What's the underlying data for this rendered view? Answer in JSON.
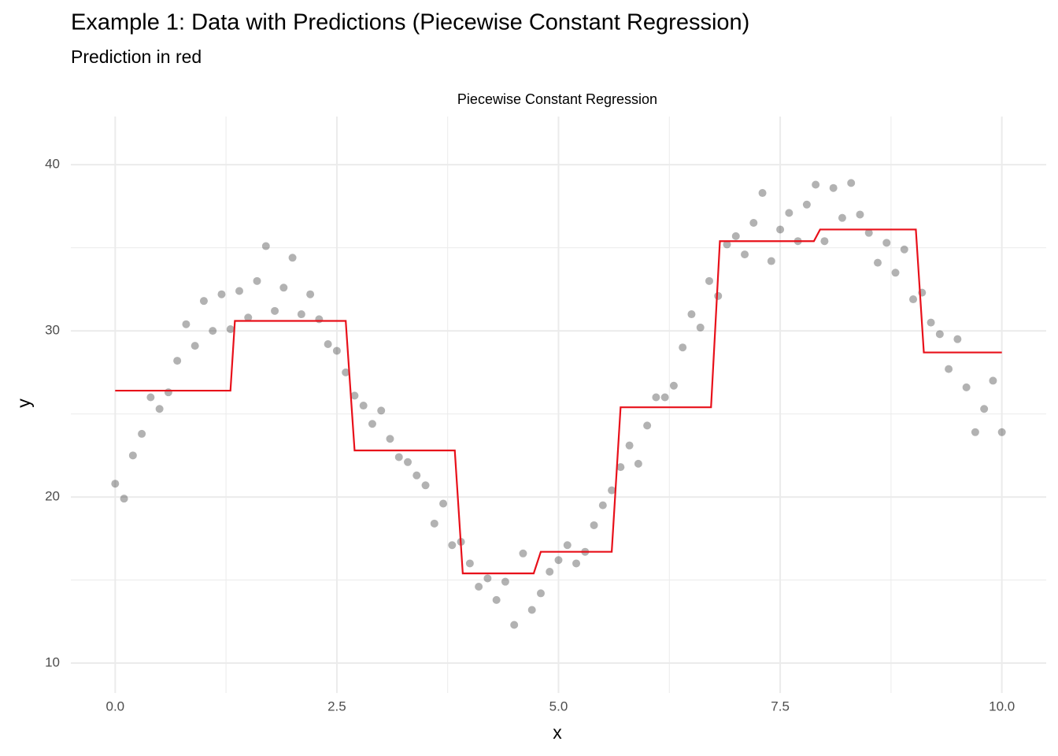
{
  "chart_data": {
    "type": "scatter",
    "title": "Example 1: Data with Predictions (Piecewise Constant Regression)",
    "subtitle": "Prediction in red",
    "panel_title": "Piecewise Constant Regression",
    "x_label": "x",
    "y_label": "y",
    "xlim": [
      -0.5,
      10.5
    ],
    "ylim": [
      8.2,
      42.9
    ],
    "xticks": [
      {
        "value": 0,
        "label": "0.0"
      },
      2.5,
      {
        "value": 5,
        "label": "5.0"
      },
      7.5,
      {
        "value": 10,
        "label": "10.0"
      }
    ],
    "yticks": [
      10,
      20,
      30,
      40
    ],
    "grid": true,
    "minor_grid": true,
    "points": {
      "color": "#000000",
      "opacity": 0.3,
      "x": [
        0,
        0.1,
        0.2,
        0.3,
        0.4,
        0.5,
        0.6,
        0.7,
        0.8,
        0.9,
        1,
        1.1,
        1.2,
        1.3,
        1.4,
        1.5,
        1.6,
        1.7,
        1.8,
        1.9,
        2,
        2.1,
        2.2,
        2.3,
        2.4,
        2.5,
        2.6,
        2.7,
        2.8,
        2.9,
        3,
        3.1,
        3.2,
        3.3,
        3.4,
        3.5,
        3.6,
        3.7,
        3.8,
        3.9,
        4,
        4.1,
        4.2,
        4.3,
        4.4,
        4.5,
        4.6,
        4.7,
        4.8,
        4.9,
        5,
        5.1,
        5.2,
        5.3,
        5.4,
        5.5,
        5.6,
        5.7,
        5.8,
        5.9,
        6,
        6.1,
        6.2,
        6.3,
        6.4,
        6.5,
        6.6,
        6.7,
        6.8,
        6.9,
        7,
        7.1,
        7.2,
        7.3,
        7.4,
        7.5,
        7.6,
        7.7,
        7.8,
        7.9,
        8,
        8.1,
        8.2,
        8.3,
        8.4,
        8.5,
        8.6,
        8.7,
        8.8,
        8.9,
        9,
        9.1,
        9.2,
        9.3,
        9.4,
        9.5,
        9.6,
        9.7,
        9.8,
        9.9,
        10
      ],
      "y": [
        20.8,
        19.9,
        22.5,
        23.8,
        26.0,
        25.3,
        26.3,
        28.2,
        30.4,
        29.1,
        31.8,
        30.0,
        32.2,
        30.1,
        32.4,
        30.8,
        33.0,
        35.1,
        31.2,
        32.6,
        34.4,
        31.0,
        32.2,
        30.7,
        29.2,
        28.8,
        27.5,
        26.1,
        25.5,
        24.4,
        25.2,
        23.5,
        22.4,
        22.1,
        21.3,
        20.7,
        18.4,
        19.6,
        17.1,
        17.3,
        16.0,
        14.6,
        15.1,
        13.8,
        14.9,
        12.3,
        16.6,
        13.2,
        14.2,
        15.5,
        16.2,
        17.1,
        16.0,
        16.7,
        18.3,
        19.5,
        20.4,
        21.8,
        23.1,
        22.0,
        24.3,
        26.0,
        26.0,
        26.7,
        29.0,
        31.0,
        30.2,
        33.0,
        32.1,
        35.2,
        35.7,
        34.6,
        36.5,
        38.3,
        34.2,
        36.1,
        37.1,
        35.4,
        37.6,
        38.8,
        35.4,
        38.6,
        36.8,
        38.9,
        37.0,
        35.9,
        34.1,
        35.3,
        33.5,
        34.9,
        31.9,
        32.3,
        30.5,
        29.8,
        27.7,
        29.5,
        26.6,
        23.9,
        25.3,
        27.0,
        23.9
      ]
    },
    "prediction": {
      "color": "#e8101a",
      "x": [
        0,
        1.3,
        1.35,
        2.6,
        2.7,
        3.83,
        3.92,
        4.72,
        4.8,
        5.6,
        5.7,
        6.72,
        6.82,
        7.88,
        7.95,
        9.03,
        9.12,
        10
      ],
      "y": [
        26.4,
        26.4,
        30.6,
        30.6,
        22.8,
        22.8,
        15.4,
        15.4,
        16.7,
        16.7,
        25.4,
        25.4,
        35.4,
        35.4,
        36.1,
        36.1,
        28.7,
        28.7
      ]
    }
  }
}
